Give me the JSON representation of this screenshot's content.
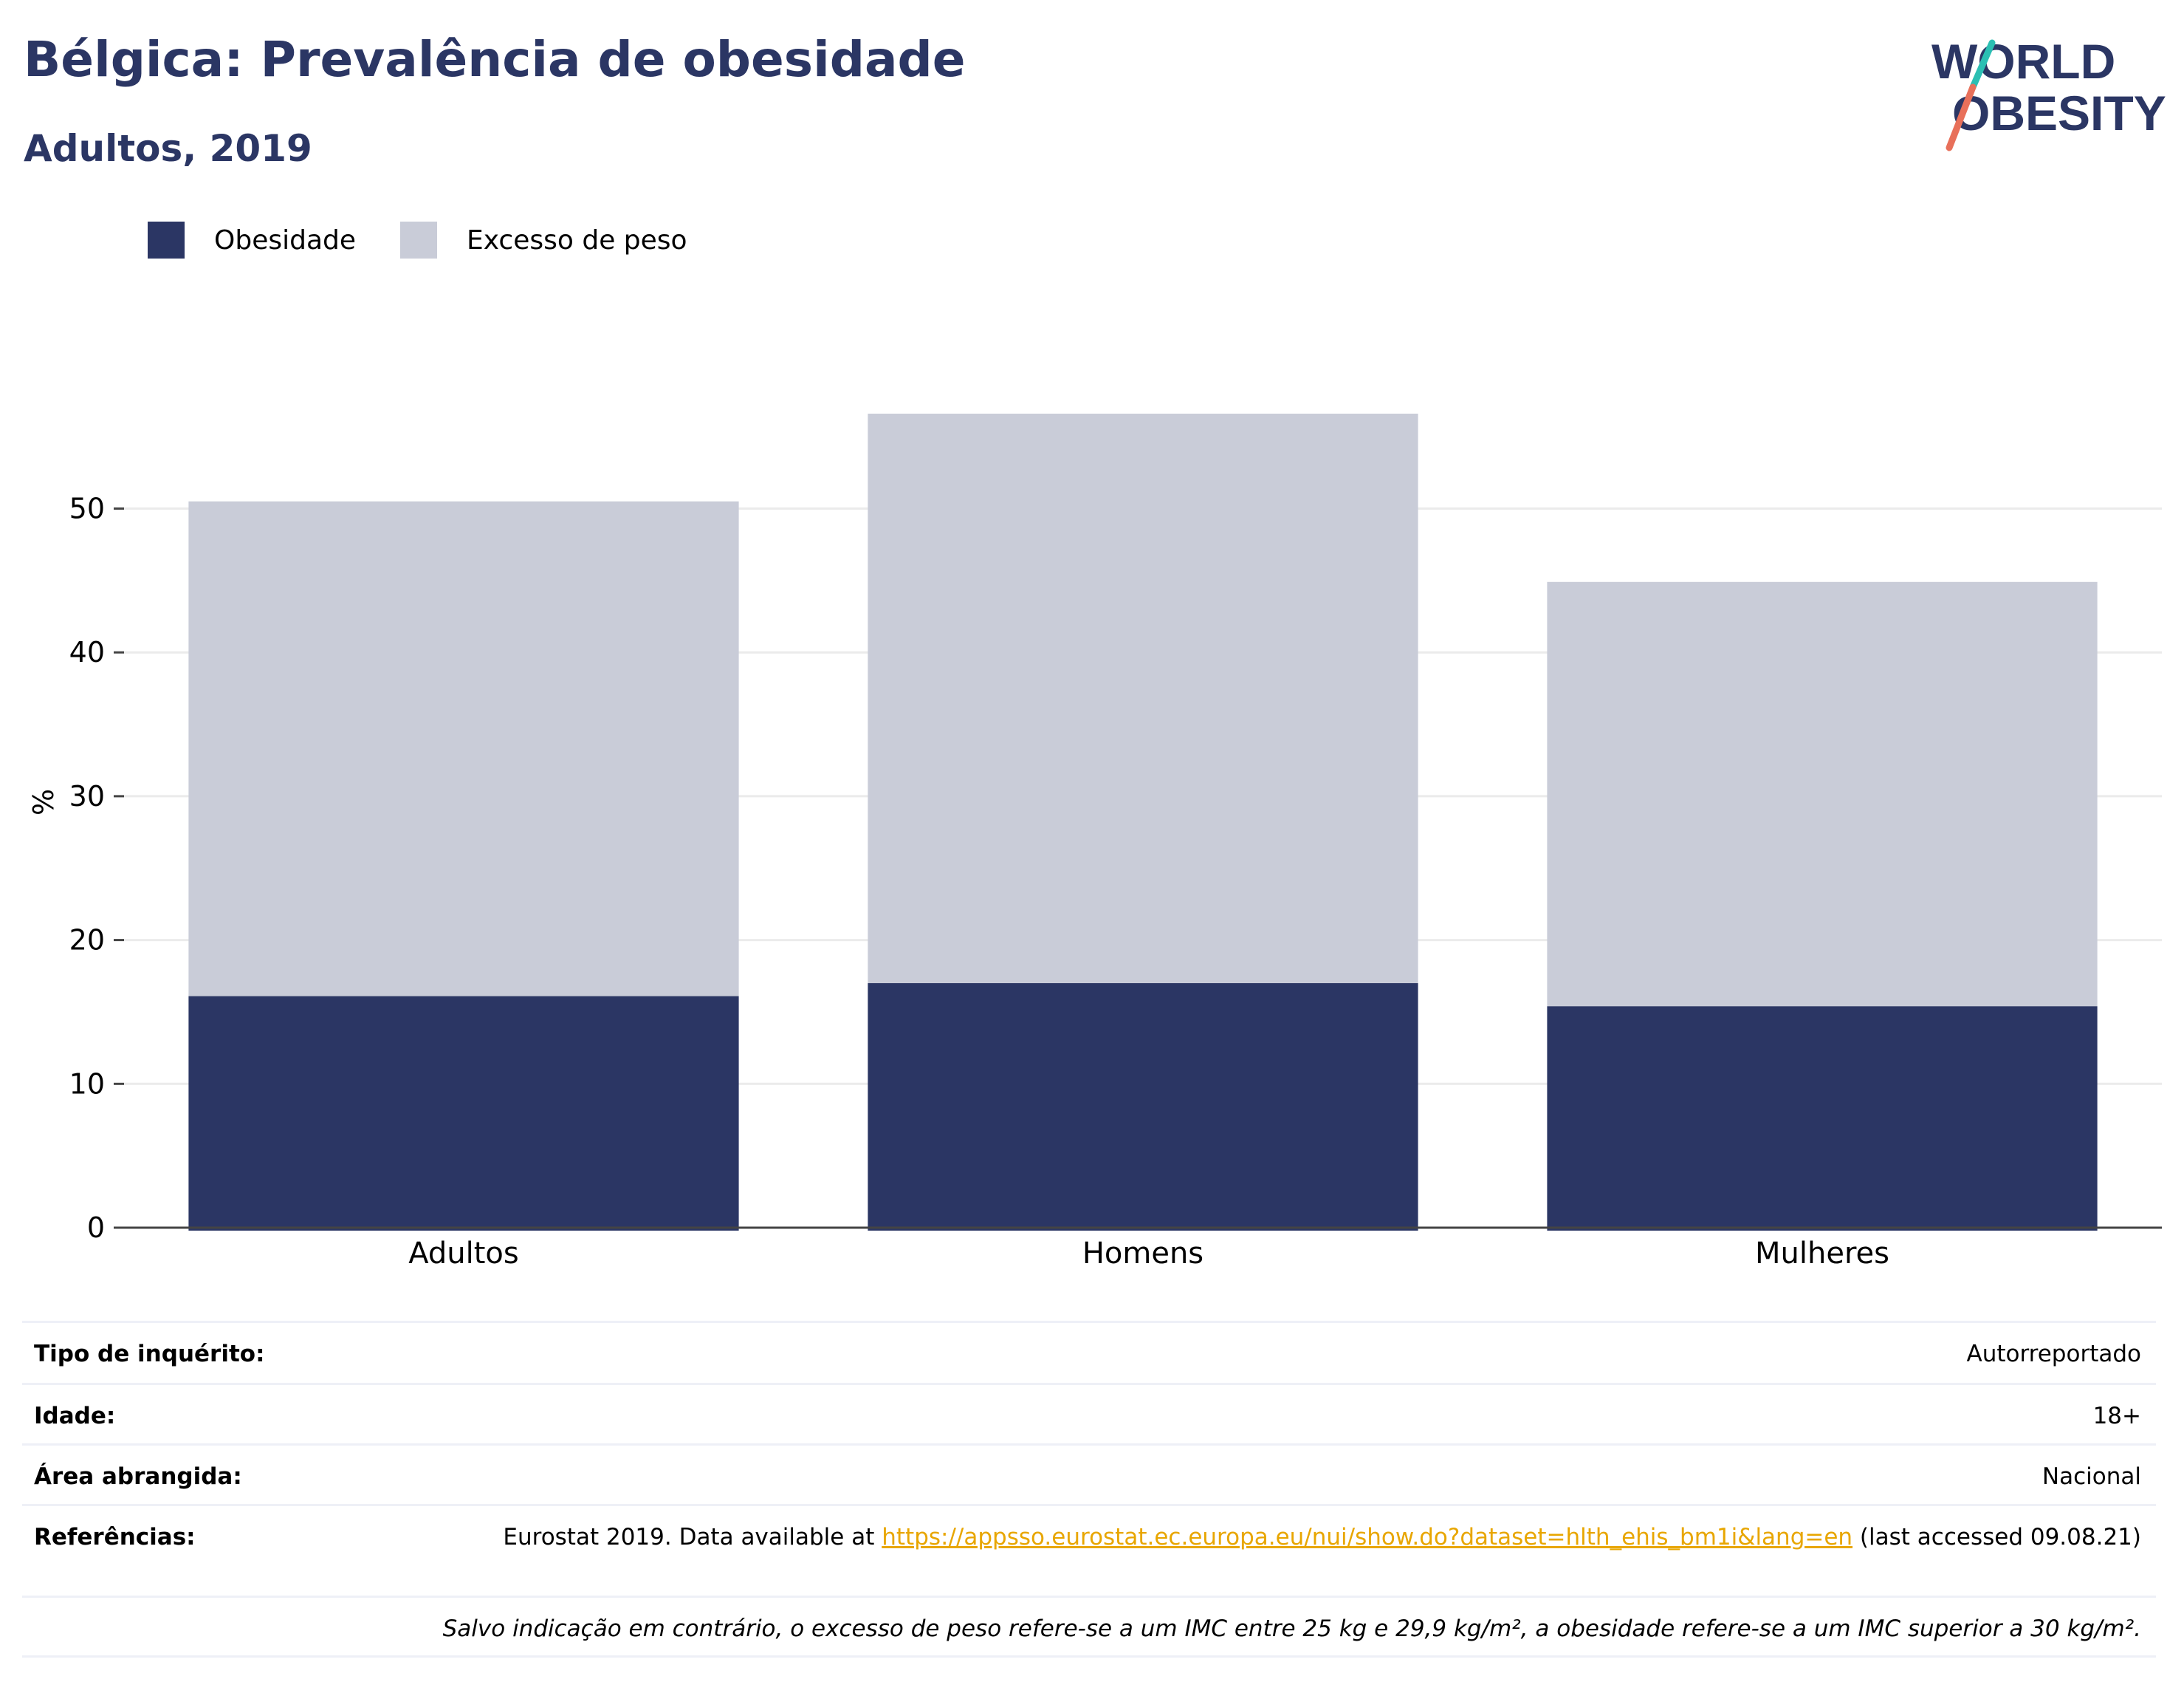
{
  "header": {
    "title": "Bélgica: Prevalência de obesidade",
    "subtitle": "Adultos, 2019"
  },
  "logo": {
    "line1": "WORLD",
    "line2": "OBESITY"
  },
  "colors": {
    "obesity": "#2b3664",
    "overweight": "#c9ccd8",
    "title": "#2b3664",
    "link": "#e8a600",
    "logo_teal": "#2bbfb3",
    "logo_coral": "#e8705a"
  },
  "chart_data": {
    "type": "bar",
    "stacked": true,
    "categories": [
      "Adultos",
      "Homens",
      "Mulheres"
    ],
    "series": [
      {
        "name": "Obesidade",
        "values": [
          16.1,
          17.0,
          15.4
        ]
      },
      {
        "name": "Excesso de peso",
        "values": [
          34.4,
          39.6,
          29.5
        ]
      }
    ],
    "ylabel": "%",
    "ylim": [
      0,
      60
    ],
    "yticks": [
      0,
      10,
      20,
      30,
      40,
      50
    ],
    "grid": true,
    "legend_position": "top-left"
  },
  "meta": {
    "survey_type": {
      "label": "Tipo de inquérito:",
      "value": "Autorreportado"
    },
    "age": {
      "label": "Idade:",
      "value": "18+"
    },
    "area": {
      "label": "Área abrangida:",
      "value": "Nacional"
    },
    "references": {
      "label": "Referências:",
      "prefix": "Eurostat 2019. Data available at ",
      "link": "https://appsso.eurostat.ec.europa.eu/nui/show.do?dataset=hlth_ehis_bm1i&lang=en",
      "suffix": " (last accessed 09.08.21)"
    },
    "note": "Salvo indicação em contrário, o excesso de peso refere-se a um IMC entre 25 kg e 29,9 kg/m², a obesidade refere-se a um IMC superior a 30 kg/m²."
  }
}
